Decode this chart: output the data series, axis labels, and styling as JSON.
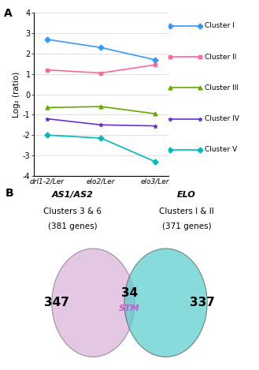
{
  "panel_A": {
    "x_labels": [
      "drl1-2/Ler",
      "elo2/Ler",
      "elo3/Ler"
    ],
    "clusters": [
      {
        "name": "Cluster I",
        "color": "#3399FF",
        "values": [
          2.7,
          2.3,
          1.7
        ]
      },
      {
        "name": "Cluster II",
        "color": "#FF6699",
        "values": [
          1.2,
          1.05,
          1.45
        ]
      },
      {
        "name": "Cluster III",
        "color": "#66AA00",
        "values": [
          -0.65,
          -0.6,
          -0.95
        ]
      },
      {
        "name": "Cluster IV",
        "color": "#6633CC",
        "values": [
          -1.2,
          -1.5,
          -1.55
        ]
      },
      {
        "name": "Cluster V",
        "color": "#00BBBB",
        "values": [
          -2.0,
          -2.15,
          -3.3
        ]
      }
    ],
    "ylabel": "Log₂ (ratio)",
    "ylim": [
      -4,
      4
    ],
    "yticks": [
      -4,
      -3,
      -2,
      -1,
      0,
      1,
      2,
      3,
      4
    ],
    "title": "A"
  },
  "panel_B": {
    "title": "B",
    "left_label_line1": "AS1/AS2",
    "left_label_line2": "Clusters 3 & 6",
    "left_label_line3": "(381 genes)",
    "right_label_line1": "ELO",
    "right_label_line2": "Clusters I & II",
    "right_label_line3": "(371 genes)",
    "left_color": "#CC99CC",
    "right_color": "#55CCCC",
    "left_number": "347",
    "overlap_number": "34",
    "overlap_text": "STM",
    "overlap_text_color": "#CC55CC",
    "right_number": "337"
  }
}
